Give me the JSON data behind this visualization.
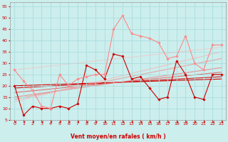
{
  "xlabel": "Vent moyen/en rafales ( km/h )",
  "xlim": [
    -0.5,
    23.5
  ],
  "ylim": [
    5,
    57
  ],
  "yticks": [
    5,
    10,
    15,
    20,
    25,
    30,
    35,
    40,
    45,
    50,
    55
  ],
  "xticks": [
    0,
    1,
    2,
    3,
    4,
    5,
    6,
    7,
    8,
    9,
    10,
    11,
    12,
    13,
    14,
    15,
    16,
    17,
    18,
    19,
    20,
    21,
    22,
    23
  ],
  "bg_color": "#cceeed",
  "grid_color": "#aadddd",
  "line_series": [
    {
      "x": [
        0,
        23
      ],
      "y": [
        20,
        23
      ],
      "color": "#cc0000",
      "lw": 0.8,
      "alpha": 1.0
    },
    {
      "x": [
        0,
        23
      ],
      "y": [
        19,
        24
      ],
      "color": "#cc0000",
      "lw": 0.8,
      "alpha": 0.9
    },
    {
      "x": [
        0,
        23
      ],
      "y": [
        17,
        26
      ],
      "color": "#dd5555",
      "lw": 0.8,
      "alpha": 0.8
    },
    {
      "x": [
        0,
        23
      ],
      "y": [
        15,
        28
      ],
      "color": "#ee7777",
      "lw": 0.8,
      "alpha": 0.75
    },
    {
      "x": [
        0,
        23
      ],
      "y": [
        14,
        32
      ],
      "color": "#ee8888",
      "lw": 0.8,
      "alpha": 0.7
    },
    {
      "x": [
        0,
        23
      ],
      "y": [
        13,
        35
      ],
      "color": "#ffaaaa",
      "lw": 0.8,
      "alpha": 0.65
    },
    {
      "x": [
        0,
        23
      ],
      "y": [
        27,
        37
      ],
      "color": "#ffbbbb",
      "lw": 0.8,
      "alpha": 0.6
    }
  ],
  "data_series": [
    {
      "x": [
        0,
        1,
        2,
        3,
        4,
        5,
        6,
        7,
        8,
        9,
        10,
        11,
        12,
        13,
        14,
        15,
        16,
        17,
        18,
        19,
        20,
        21,
        22,
        23
      ],
      "y": [
        20,
        7,
        11,
        10,
        10,
        11,
        10,
        12,
        29,
        27,
        23,
        34,
        33,
        23,
        24,
        19,
        14,
        15,
        31,
        25,
        15,
        14,
        25,
        25
      ],
      "color": "#cc0000",
      "lw": 0.8,
      "marker": "D",
      "ms": 1.8,
      "alpha": 1.0
    },
    {
      "x": [
        0,
        1,
        2,
        3,
        4,
        5,
        6,
        7,
        8,
        9,
        10,
        11,
        12,
        13,
        14,
        15,
        16,
        17,
        18,
        19,
        20,
        21,
        22,
        23
      ],
      "y": [
        27,
        22,
        18,
        11,
        10,
        25,
        20,
        23,
        24,
        25,
        25,
        45,
        51,
        43,
        42,
        41,
        39,
        32,
        33,
        42,
        30,
        27,
        38,
        38
      ],
      "color": "#ff8888",
      "lw": 0.8,
      "marker": "D",
      "ms": 1.8,
      "alpha": 1.0
    }
  ],
  "arrow_color": "#cc2222",
  "xlabel_color": "#cc0000",
  "tick_color": "#cc0000"
}
